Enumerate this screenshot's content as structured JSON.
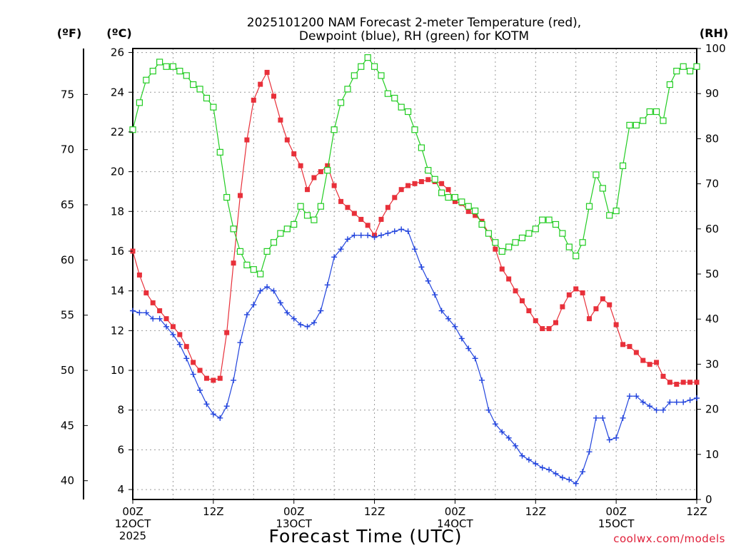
{
  "chart_data": {
    "type": "line",
    "title": [
      "2025101200 NAM Forecast 2-meter Temperature (red),",
      "Dewpoint (blue), RH (green) for KOTM"
    ],
    "xlabel": "Forecast Time (UTC)",
    "x_ticks": [
      {
        "hour": 0,
        "lines": [
          "00Z",
          "12OCT",
          "2025"
        ]
      },
      {
        "hour": 12,
        "lines": [
          "12Z"
        ]
      },
      {
        "hour": 24,
        "lines": [
          "00Z",
          "13OCT"
        ]
      },
      {
        "hour": 36,
        "lines": [
          "12Z"
        ]
      },
      {
        "hour": 48,
        "lines": [
          "00Z",
          "14OCT"
        ]
      },
      {
        "hour": 60,
        "lines": [
          "12Z"
        ]
      },
      {
        "hour": 72,
        "lines": [
          "00Z",
          "15OCT"
        ]
      },
      {
        "hour": 84,
        "lines": [
          "12Z"
        ]
      }
    ],
    "x_range_hours": [
      0,
      84
    ],
    "y_left_unit_c": "(ºC)",
    "y_left_unit_f": "(ºF)",
    "y_right_unit": "(RH)",
    "ylim_c": [
      3.5,
      26.2
    ],
    "ylim_rh": [
      0,
      100
    ],
    "y_ticks_c": [
      4,
      6,
      8,
      10,
      12,
      14,
      16,
      18,
      20,
      22,
      24,
      26
    ],
    "y_ticks_f": [
      40,
      45,
      50,
      55,
      60,
      65,
      70,
      75
    ],
    "y_ticks_rh": [
      0,
      10,
      20,
      30,
      40,
      50,
      60,
      70,
      80,
      90,
      100
    ],
    "grid": true,
    "series": [
      {
        "name": "Temperature",
        "color": "#e8303a",
        "marker": "filled-square",
        "axis": "celsius",
        "x": [
          0,
          1,
          2,
          3,
          4,
          5,
          6,
          7,
          8,
          9,
          10,
          11,
          12,
          13,
          14,
          15,
          16,
          17,
          18,
          19,
          20,
          21,
          22,
          23,
          24,
          25,
          26,
          27,
          28,
          29,
          30,
          31,
          32,
          33,
          34,
          35,
          36,
          37,
          38,
          39,
          40,
          41,
          42,
          43,
          44,
          45,
          46,
          47,
          48,
          49,
          50,
          51,
          52,
          53,
          54,
          55,
          56,
          57,
          58,
          59,
          60,
          61,
          62,
          63,
          64,
          65,
          66,
          67,
          68,
          69,
          70,
          71,
          72,
          73,
          74,
          75,
          76,
          77,
          78,
          79,
          80,
          81,
          82,
          83,
          84
        ],
        "values": [
          16.0,
          14.8,
          13.9,
          13.4,
          13.0,
          12.6,
          12.2,
          11.8,
          11.2,
          10.4,
          10.0,
          9.6,
          9.5,
          9.6,
          11.9,
          15.4,
          18.8,
          21.6,
          23.6,
          24.4,
          25.0,
          23.8,
          22.6,
          21.6,
          20.9,
          20.3,
          19.1,
          19.7,
          20.0,
          20.3,
          19.3,
          18.5,
          18.2,
          17.9,
          17.6,
          17.3,
          16.8,
          17.6,
          18.2,
          18.7,
          19.1,
          19.3,
          19.4,
          19.5,
          19.6,
          19.5,
          19.4,
          19.1,
          18.5,
          18.4,
          18.0,
          17.8,
          17.5,
          16.9,
          16.1,
          15.1,
          14.6,
          14.0,
          13.5,
          13.0,
          12.5,
          12.1,
          12.1,
          12.4,
          13.2,
          13.8,
          14.1,
          13.9,
          12.6,
          13.1,
          13.6,
          13.3,
          12.3,
          11.3,
          11.2,
          10.9,
          10.5,
          10.3,
          10.4,
          9.7,
          9.4,
          9.3,
          9.4,
          9.4,
          9.4
        ]
      },
      {
        "name": "Dewpoint",
        "color": "#2244dd",
        "marker": "plus",
        "axis": "celsius",
        "x": [
          0,
          1,
          2,
          3,
          4,
          5,
          6,
          7,
          8,
          9,
          10,
          11,
          12,
          13,
          14,
          15,
          16,
          17,
          18,
          19,
          20,
          21,
          22,
          23,
          24,
          25,
          26,
          27,
          28,
          29,
          30,
          31,
          32,
          33,
          34,
          35,
          36,
          37,
          38,
          39,
          40,
          41,
          42,
          43,
          44,
          45,
          46,
          47,
          48,
          49,
          50,
          51,
          52,
          53,
          54,
          55,
          56,
          57,
          58,
          59,
          60,
          61,
          62,
          63,
          64,
          65,
          66,
          67,
          68,
          69,
          70,
          71,
          72,
          73,
          74,
          75,
          76,
          77,
          78,
          79,
          80,
          81,
          82,
          83,
          84
        ],
        "values": [
          13.0,
          12.9,
          12.9,
          12.6,
          12.6,
          12.2,
          11.8,
          11.3,
          10.6,
          9.8,
          9.0,
          8.3,
          7.8,
          7.6,
          8.2,
          9.5,
          11.4,
          12.8,
          13.3,
          14.0,
          14.2,
          14.0,
          13.4,
          12.9,
          12.6,
          12.3,
          12.2,
          12.4,
          13.0,
          14.3,
          15.7,
          16.1,
          16.6,
          16.8,
          16.8,
          16.8,
          16.7,
          16.8,
          16.9,
          17.0,
          17.1,
          17.0,
          16.1,
          15.2,
          14.5,
          13.8,
          13.0,
          12.6,
          12.2,
          11.6,
          11.1,
          10.6,
          9.5,
          8.0,
          7.3,
          6.9,
          6.6,
          6.2,
          5.7,
          5.5,
          5.3,
          5.1,
          5.0,
          4.8,
          4.6,
          4.5,
          4.3,
          4.9,
          5.9,
          7.6,
          7.6,
          6.5,
          6.6,
          7.6,
          8.7,
          8.7,
          8.4,
          8.2,
          8.0,
          8.0,
          8.4,
          8.4,
          8.4,
          8.5,
          8.6
        ]
      },
      {
        "name": "RH",
        "color": "#22cc22",
        "marker": "open-square",
        "axis": "rh",
        "x": [
          0,
          1,
          2,
          3,
          4,
          5,
          6,
          7,
          8,
          9,
          10,
          11,
          12,
          13,
          14,
          15,
          16,
          17,
          18,
          19,
          20,
          21,
          22,
          23,
          24,
          25,
          26,
          27,
          28,
          29,
          30,
          31,
          32,
          33,
          34,
          35,
          36,
          37,
          38,
          39,
          40,
          41,
          42,
          43,
          44,
          45,
          46,
          47,
          48,
          49,
          50,
          51,
          52,
          53,
          54,
          55,
          56,
          57,
          58,
          59,
          60,
          61,
          62,
          63,
          64,
          65,
          66,
          67,
          68,
          69,
          70,
          71,
          72,
          73,
          74,
          75,
          76,
          77,
          78,
          79,
          80,
          81,
          82,
          83,
          84
        ],
        "values": [
          82,
          88,
          93,
          95,
          97,
          96,
          96,
          95,
          94,
          92,
          91,
          89,
          87,
          77,
          67,
          60,
          55,
          52,
          51,
          50,
          55,
          57,
          59,
          60,
          61,
          65,
          63,
          62,
          65,
          73,
          82,
          88,
          91,
          94,
          96,
          98,
          96,
          94,
          90,
          89,
          87,
          86,
          82,
          78,
          73,
          71,
          68,
          67,
          67,
          66,
          65,
          64,
          61,
          59,
          57,
          55,
          56,
          57,
          58,
          59,
          60,
          62,
          62,
          61,
          59,
          56,
          54,
          57,
          65,
          72,
          69,
          63,
          64,
          74,
          83,
          83,
          84,
          86,
          86,
          84,
          92,
          95,
          96,
          95,
          96
        ]
      }
    ]
  },
  "credit": "coolwx.com/models"
}
